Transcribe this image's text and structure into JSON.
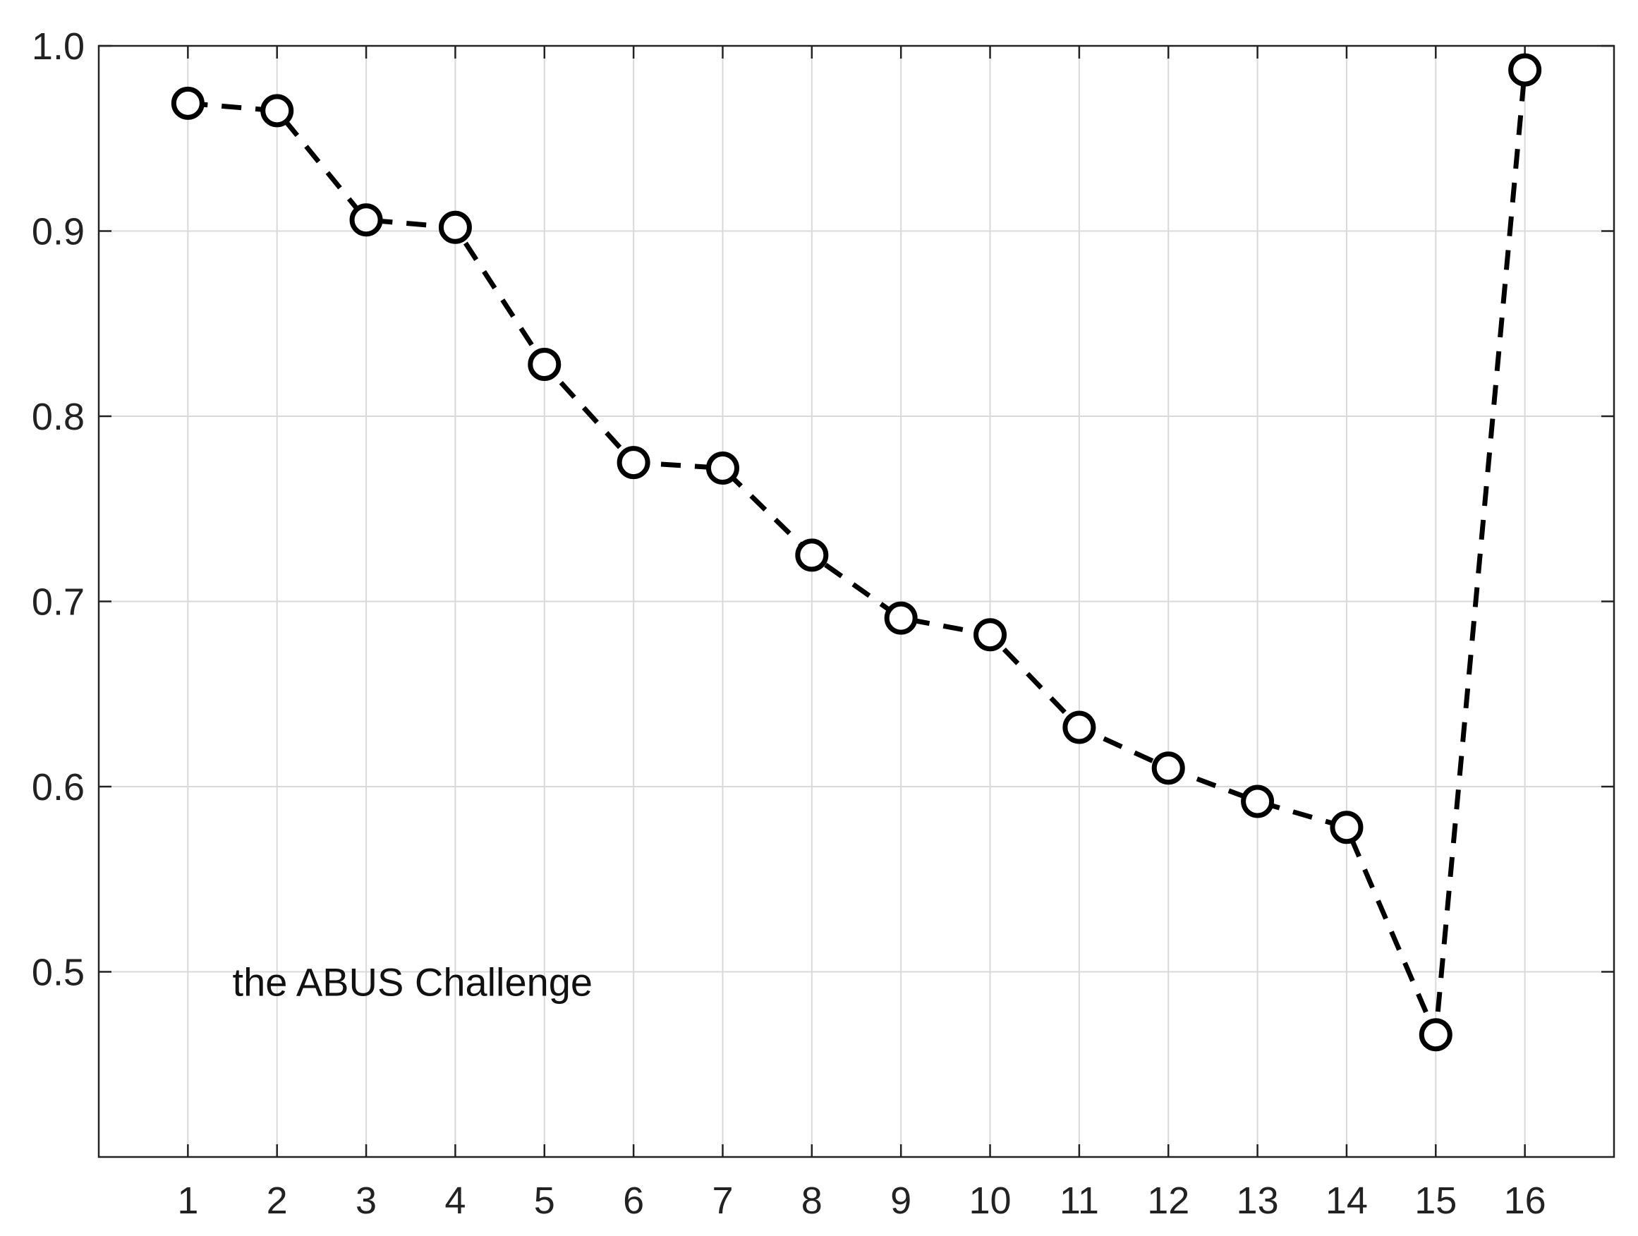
{
  "chart_data": {
    "type": "line",
    "title": "",
    "xlabel": "",
    "ylabel": "",
    "x": [
      1,
      2,
      3,
      4,
      5,
      6,
      7,
      8,
      9,
      10,
      11,
      12,
      13,
      14,
      15,
      16
    ],
    "x_tick_labels": [
      "1",
      "2",
      "3",
      "4",
      "5",
      "6",
      "7",
      "8",
      "9",
      "10",
      "11",
      "12",
      "13",
      "14",
      "15",
      "16"
    ],
    "y_ticks": [
      0.5,
      0.6,
      0.7,
      0.8,
      0.9,
      1.0
    ],
    "y_tick_labels": [
      "0.5",
      "0.6",
      "0.7",
      "0.8",
      "0.9",
      "1.0"
    ],
    "xlim": [
      0,
      17
    ],
    "ylim": [
      0.4,
      1.0
    ],
    "grid": true,
    "series": [
      {
        "values": [
          0.969,
          0.965,
          0.906,
          0.902,
          0.828,
          0.775,
          0.772,
          0.725,
          0.691,
          0.682,
          0.632,
          0.61,
          0.592,
          0.578,
          0.466,
          0.987
        ],
        "line_style": "dashed",
        "marker": "circle",
        "color": "#000000"
      }
    ],
    "annotations": [
      {
        "text": "the ABUS Challenge",
        "x": 1.5,
        "y": 0.487
      }
    ]
  }
}
